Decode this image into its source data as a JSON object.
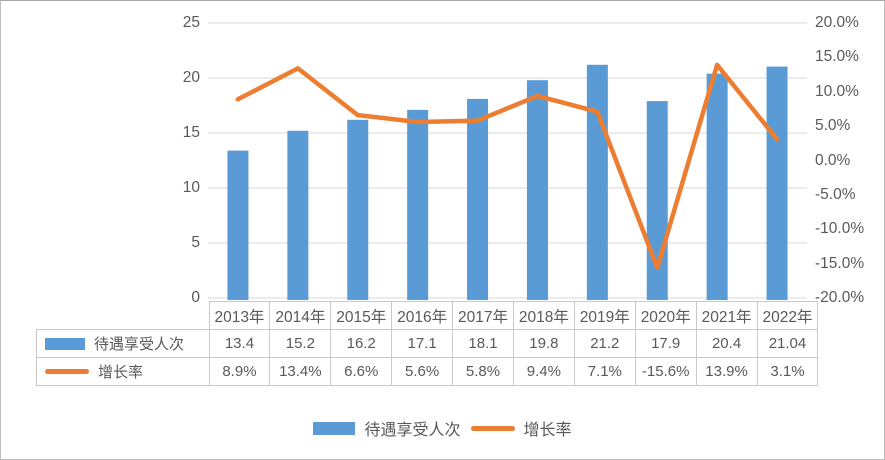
{
  "chart_data": {
    "type": "combo-bar-line",
    "categories": [
      "2013年",
      "2014年",
      "2015年",
      "2016年",
      "2017年",
      "2018年",
      "2019年",
      "2020年",
      "2021年",
      "2022年"
    ],
    "series": [
      {
        "name": "待遇享受人次",
        "type": "bar",
        "axis": "left",
        "values": [
          13.4,
          15.2,
          16.2,
          17.1,
          18.1,
          19.8,
          21.2,
          17.9,
          20.4,
          21.04
        ],
        "color": "#5B9BD5"
      },
      {
        "name": "增长率",
        "type": "line",
        "axis": "right",
        "values": [
          8.9,
          13.4,
          6.6,
          5.6,
          5.8,
          9.4,
          7.1,
          -15.6,
          13.9,
          3.1
        ],
        "values_unit": "%",
        "color": "#ED7D31"
      }
    ],
    "left_axis": {
      "min": 0,
      "max": 25,
      "tick_labels_top_to_bottom": [
        "25",
        "20",
        "15",
        "10",
        "5",
        "0"
      ]
    },
    "right_axis": {
      "min": -20,
      "max": 20,
      "tick_labels_top_to_bottom": [
        "20.0%",
        "15.0%",
        "10.0%",
        "5.0%",
        "0.0%",
        "-5.0%",
        "-10.0%",
        "-15.0%",
        "-20.0%"
      ]
    },
    "grid": true,
    "legend_position": "bottom",
    "title": ""
  },
  "table": {
    "rows": [
      {
        "label": "待遇享受人次",
        "swatch": "bar",
        "values": [
          "13.4",
          "15.2",
          "16.2",
          "17.1",
          "18.1",
          "19.8",
          "21.2",
          "17.9",
          "20.4",
          "21.04"
        ]
      },
      {
        "label": "增长率",
        "swatch": "line",
        "values": [
          "8.9%",
          "13.4%",
          "6.6%",
          "5.6%",
          "5.8%",
          "9.4%",
          "7.1%",
          "-15.6%",
          "13.9%",
          "3.1%"
        ]
      }
    ]
  },
  "legend": {
    "items": [
      {
        "label": "待遇享受人次",
        "swatch": "bar",
        "color": "#5B9BD5"
      },
      {
        "label": "增长率",
        "swatch": "line",
        "color": "#ED7D31"
      }
    ]
  },
  "colors": {
    "bar": "#5B9BD5",
    "line": "#ED7D31",
    "gridline": "#D9D9D9",
    "axis_text": "#595959",
    "table_border": "#C9C9C9",
    "background": "#FFFFFF"
  }
}
